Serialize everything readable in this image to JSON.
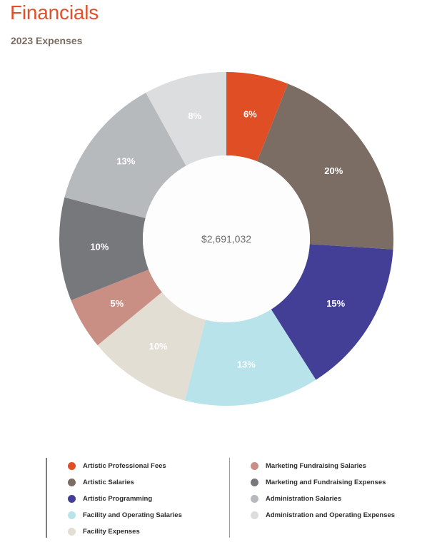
{
  "header": {
    "title": "Financials",
    "subtitle": "2023 Expenses"
  },
  "chart_data": {
    "type": "pie",
    "title": "2023 Expenses",
    "center_label": "$2,691,032",
    "categories": [
      "Artistic Professional Fees",
      "Artistic Salaries",
      "Artistic Programming",
      "Facility and Operating Salaries",
      "Facility Expenses",
      "Marketing Fundraising Salaries",
      "Marketing and Fundraising Expenses",
      "Administration Salaries",
      "Administration and Operating Expenses"
    ],
    "values": [
      6,
      20,
      15,
      13,
      10,
      5,
      10,
      13,
      8
    ],
    "value_labels": [
      "6%",
      "20%",
      "15%",
      "13%",
      "10%",
      "5%",
      "10%",
      "13%",
      "8%"
    ],
    "colors": [
      "#e04e26",
      "#7b6d63",
      "#433f96",
      "#b8e3ea",
      "#e3ded4",
      "#c98f85",
      "#76787b",
      "#b7babd",
      "#dcdddf"
    ],
    "label_text_color": "#ffffff",
    "hole": true,
    "legend_position": "bottom"
  },
  "legend": {
    "left": [
      {
        "label": "Artistic Professional Fees",
        "color": "#e04e26"
      },
      {
        "label": "Artistic Salaries",
        "color": "#7b6d63"
      },
      {
        "label": "Artistic Programming",
        "color": "#433f96"
      },
      {
        "label": "Facility and Operating Salaries",
        "color": "#b8e3ea"
      },
      {
        "label": "Facility Expenses",
        "color": "#e3ded4"
      }
    ],
    "right": [
      {
        "label": "Marketing Fundraising Salaries",
        "color": "#c98f85"
      },
      {
        "label": "Marketing and Fundraising Expenses",
        "color": "#76787b"
      },
      {
        "label": "Administration Salaries",
        "color": "#b7babd"
      },
      {
        "label": "Administration and Operating Expenses",
        "color": "#dcdddf"
      }
    ]
  }
}
